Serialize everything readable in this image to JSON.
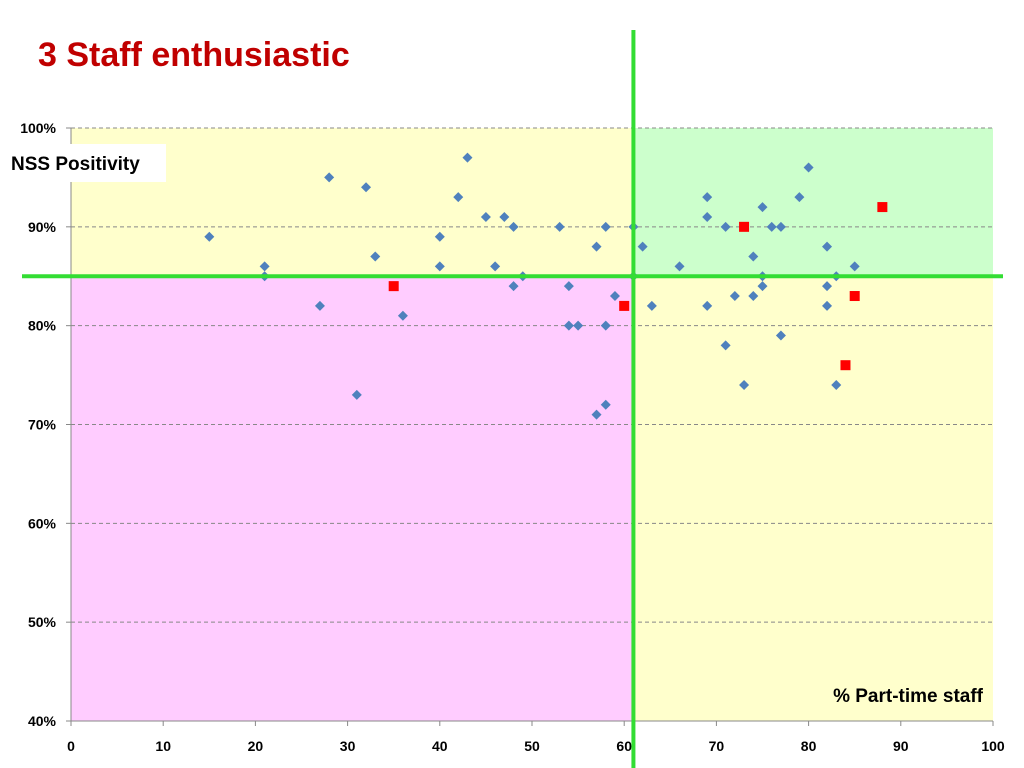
{
  "slide": {
    "title": "3 Staff enthusiastic"
  },
  "colors": {
    "title": "#c00000",
    "quadrant_top_left": "#ffffcc",
    "quadrant_top_right": "#ccffcc",
    "quadrant_bottom_left": "#ffccff",
    "quadrant_bottom_right": "#ffffcc",
    "threshold_lines": "#33dd33",
    "series_main": "#4f81bd",
    "series_highlight": "#ff0000"
  },
  "chart_data": {
    "type": "scatter",
    "title": "",
    "xlabel": "% Part-time staff",
    "ylabel": "NSS Positivity",
    "xlim": [
      0,
      100
    ],
    "ylim": [
      40,
      100
    ],
    "x_ticks": [
      "0",
      "10",
      "20",
      "30",
      "40",
      "50",
      "60",
      "70",
      "80",
      "90",
      "100"
    ],
    "y_ticks": [
      "40%",
      "50%",
      "60%",
      "70%",
      "80%",
      "90%",
      "100%"
    ],
    "grid": "horizontal dashed",
    "thresholds": {
      "x": 61,
      "y": 85
    },
    "series": [
      {
        "marker": "diamond",
        "color": "#4f81bd",
        "points": [
          [
            15,
            89
          ],
          [
            21,
            86
          ],
          [
            21,
            85
          ],
          [
            27,
            82
          ],
          [
            28,
            95
          ],
          [
            31,
            73
          ],
          [
            32,
            94
          ],
          [
            33,
            87
          ],
          [
            36,
            81
          ],
          [
            40,
            89
          ],
          [
            40,
            86
          ],
          [
            42,
            93
          ],
          [
            43,
            97
          ],
          [
            45,
            91
          ],
          [
            46,
            86
          ],
          [
            47,
            91
          ],
          [
            48,
            90
          ],
          [
            48,
            84
          ],
          [
            49,
            85
          ],
          [
            53,
            90
          ],
          [
            54,
            84
          ],
          [
            54,
            80
          ],
          [
            55,
            80
          ],
          [
            57,
            88
          ],
          [
            57,
            71
          ],
          [
            58,
            90
          ],
          [
            58,
            80
          ],
          [
            58,
            72
          ],
          [
            59,
            83
          ],
          [
            61,
            90
          ],
          [
            61,
            85
          ],
          [
            62,
            88
          ],
          [
            63,
            82
          ],
          [
            66,
            86
          ],
          [
            69,
            93
          ],
          [
            69,
            91
          ],
          [
            69,
            82
          ],
          [
            71,
            90
          ],
          [
            71,
            78
          ],
          [
            72,
            83
          ],
          [
            73,
            74
          ],
          [
            74,
            87
          ],
          [
            74,
            83
          ],
          [
            75,
            92
          ],
          [
            75,
            85
          ],
          [
            75,
            84
          ],
          [
            76,
            90
          ],
          [
            77,
            90
          ],
          [
            77,
            79
          ],
          [
            79,
            93
          ],
          [
            80,
            96
          ],
          [
            82,
            88
          ],
          [
            82,
            84
          ],
          [
            82,
            82
          ],
          [
            83,
            85
          ],
          [
            83,
            74
          ],
          [
            85,
            86
          ]
        ]
      },
      {
        "marker": "square",
        "color": "#ff0000",
        "points": [
          [
            35,
            84
          ],
          [
            60,
            82
          ],
          [
            73,
            90
          ],
          [
            84,
            76
          ],
          [
            85,
            83
          ],
          [
            88,
            92
          ]
        ]
      }
    ]
  }
}
